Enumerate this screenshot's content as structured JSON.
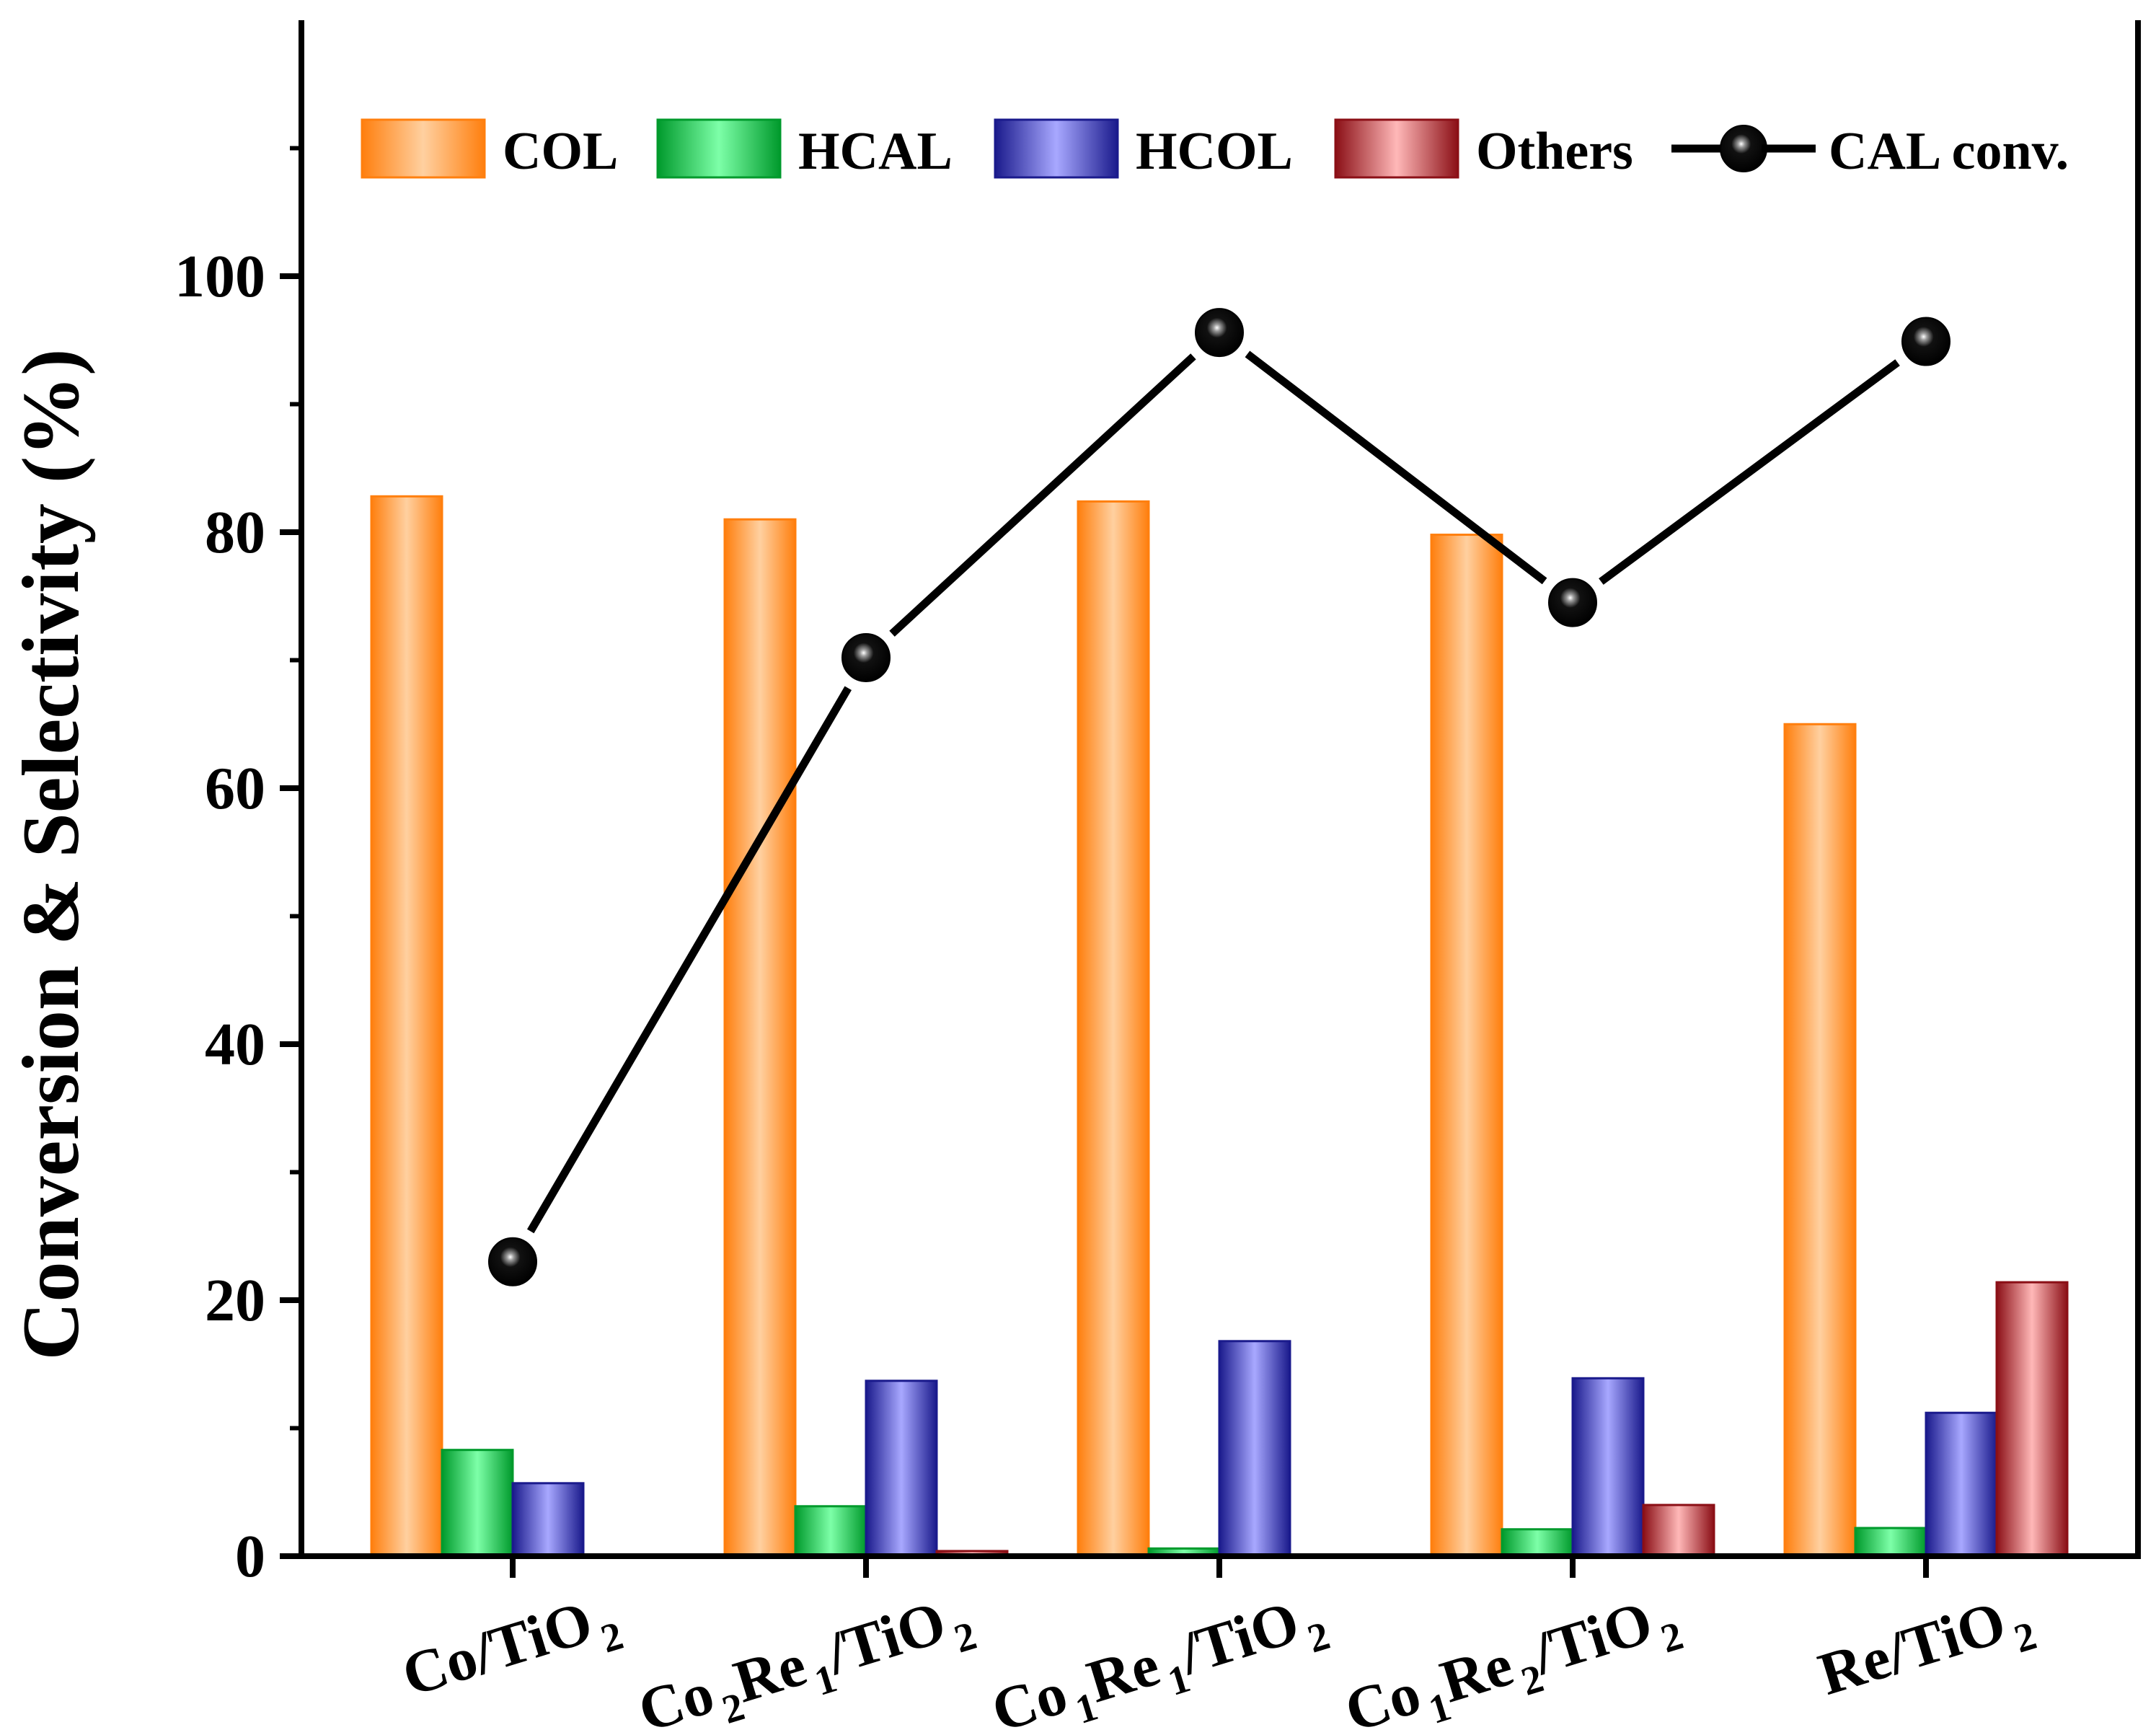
{
  "chart_data": {
    "type": "bar",
    "title": "",
    "xlabel": "",
    "ylabel": "Conversion & Selectivity (%)",
    "ylim": [
      0,
      120
    ],
    "yticks": [
      0,
      20,
      40,
      60,
      80,
      100
    ],
    "y_minor_ticks": [
      10,
      30,
      50,
      70,
      90,
      110
    ],
    "grid": false,
    "legend_position": "top",
    "categories": [
      {
        "main": "Co/TiO",
        "sub": "2"
      },
      {
        "main": "Co",
        "sub": "2",
        "main2": "Re",
        "sub2": "1",
        "main3": "/TiO",
        "sub3": "2"
      },
      {
        "main": "Co",
        "sub": "1",
        "main2": "Re",
        "sub2": "1",
        "main3": "/TiO",
        "sub3": "2"
      },
      {
        "main": "Co",
        "sub": "1",
        "main2": "Re",
        "sub2": "2",
        "main3": "/TiO",
        "sub3": "2"
      },
      {
        "main": "Re/TiO",
        "sub": "2"
      }
    ],
    "category_labels": [
      "Co/TiO2",
      "Co2Re1/TiO2",
      "Co1Re1/TiO2",
      "Co1Re2/TiO2",
      "Re/TiO2"
    ],
    "series": [
      {
        "name": "COL",
        "kind": "bar",
        "values": [
          82.8,
          81.0,
          82.4,
          79.8,
          65.0
        ],
        "colors": {
          "edge": "#ff7f0e",
          "mid": "#ffd0a0"
        }
      },
      {
        "name": "HCAL",
        "kind": "bar",
        "values": [
          8.3,
          3.9,
          0.6,
          2.1,
          2.2
        ],
        "colors": {
          "edge": "#009a2c",
          "mid": "#7dffa8"
        }
      },
      {
        "name": "HCOL",
        "kind": "bar",
        "values": [
          5.7,
          13.7,
          16.8,
          13.9,
          11.2
        ],
        "colors": {
          "edge": "#1a1a8c",
          "mid": "#a8a8ff"
        }
      },
      {
        "name": "Others",
        "kind": "bar",
        "values": [
          0.0,
          0.4,
          0.0,
          4.0,
          21.4
        ],
        "colors": {
          "edge": "#8b0f16",
          "mid": "#ffb8b8"
        }
      },
      {
        "name": "CAL conv.",
        "kind": "line",
        "values": [
          23.0,
          70.2,
          95.6,
          74.5,
          94.9
        ],
        "colors": {
          "line": "#000000",
          "marker": "#000000"
        }
      }
    ]
  }
}
